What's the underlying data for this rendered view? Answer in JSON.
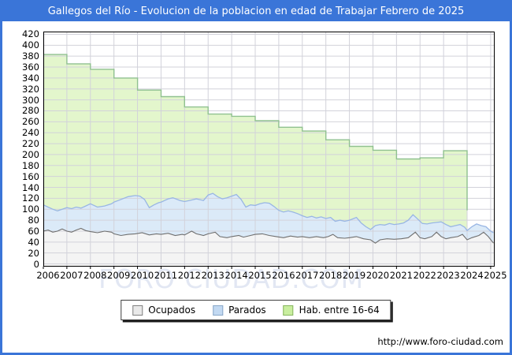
{
  "header": {
    "title": "Gallegos del Río - Evolucion de la poblacion en edad de Trabajar Febrero de 2025"
  },
  "watermark": "FORO CIUDAD.COM",
  "footer": {
    "url": "http://www.foro-ciudad.com"
  },
  "colors": {
    "accent_blue": "#3a75d8",
    "grid": "#d2d2da",
    "plot_border": "#000000",
    "watermark": "#e2e7f3"
  },
  "legend": {
    "items": [
      {
        "label": "Ocupados",
        "swatch_fill": "#e9e9e9",
        "swatch_border": "#7f7f7f"
      },
      {
        "label": "Parados",
        "swatch_fill": "#c2d9f2",
        "swatch_border": "#89a7c8"
      },
      {
        "label": "Hab. entre 16-64",
        "swatch_fill": "#c9ee9f",
        "swatch_border": "#86b55e"
      }
    ]
  },
  "chart_data": {
    "type": "area",
    "title": "Gallegos del Río - Evolucion de la poblacion en edad de Trabajar Febrero de 2025",
    "xlabel": "",
    "ylabel": "",
    "x_axis": {
      "years": [
        2006,
        2007,
        2008,
        2009,
        2010,
        2011,
        2012,
        2013,
        2014,
        2015,
        2016,
        2017,
        2018,
        2019,
        2020,
        2021,
        2022,
        2023,
        2024,
        2025
      ],
      "x_start": 2006,
      "x_end": 2025.17
    },
    "y_axis": {
      "min": 0,
      "max": 420,
      "step": 20
    },
    "grid": true,
    "legend_position": "bottom",
    "series": [
      {
        "name": "Hab. entre 16-64",
        "style": "step-area",
        "fill": "#e3f6cc",
        "stroke": "#90c190",
        "note": "annual values, series ends after the Jan 2024 drop",
        "points": [
          [
            2006,
            383
          ],
          [
            2007,
            366
          ],
          [
            2008,
            356
          ],
          [
            2009,
            340
          ],
          [
            2010,
            318
          ],
          [
            2011,
            306
          ],
          [
            2012,
            287
          ],
          [
            2013,
            274
          ],
          [
            2014,
            270
          ],
          [
            2015,
            262
          ],
          [
            2016,
            250
          ],
          [
            2017,
            243
          ],
          [
            2018,
            227
          ],
          [
            2019,
            215
          ],
          [
            2020,
            208
          ],
          [
            2021,
            192
          ],
          [
            2022,
            194
          ],
          [
            2023,
            207
          ],
          [
            2024,
            98
          ]
        ]
      },
      {
        "name": "Parados",
        "style": "area",
        "fill": "#dbeaf8",
        "stroke": "#99b6e4",
        "note": "stacked on top of Ocupados: line = Ocupados + Parados (activos)",
        "points": [
          [
            2006.0,
            108
          ],
          [
            2006.2,
            104
          ],
          [
            2006.4,
            100
          ],
          [
            2006.6,
            97
          ],
          [
            2006.8,
            100
          ],
          [
            2007.0,
            103
          ],
          [
            2007.2,
            101
          ],
          [
            2007.4,
            104
          ],
          [
            2007.6,
            102
          ],
          [
            2007.8,
            106
          ],
          [
            2008.0,
            110
          ],
          [
            2008.3,
            104
          ],
          [
            2008.6,
            106
          ],
          [
            2008.9,
            110
          ],
          [
            2009.0,
            113
          ],
          [
            2009.3,
            118
          ],
          [
            2009.6,
            123
          ],
          [
            2009.9,
            125
          ],
          [
            2010.1,
            124
          ],
          [
            2010.3,
            118
          ],
          [
            2010.5,
            103
          ],
          [
            2010.7,
            108
          ],
          [
            2010.9,
            112
          ],
          [
            2011.0,
            113
          ],
          [
            2011.3,
            119
          ],
          [
            2011.5,
            121
          ],
          [
            2011.8,
            116
          ],
          [
            2012.0,
            114
          ],
          [
            2012.3,
            117
          ],
          [
            2012.5,
            119
          ],
          [
            2012.8,
            116
          ],
          [
            2013.0,
            126
          ],
          [
            2013.2,
            129
          ],
          [
            2013.4,
            123
          ],
          [
            2013.6,
            119
          ],
          [
            2013.8,
            121
          ],
          [
            2014.0,
            124
          ],
          [
            2014.2,
            127
          ],
          [
            2014.4,
            118
          ],
          [
            2014.6,
            104
          ],
          [
            2014.8,
            108
          ],
          [
            2015.0,
            107
          ],
          [
            2015.2,
            110
          ],
          [
            2015.4,
            112
          ],
          [
            2015.6,
            111
          ],
          [
            2015.8,
            105
          ],
          [
            2016.0,
            98
          ],
          [
            2016.2,
            95
          ],
          [
            2016.4,
            97
          ],
          [
            2016.6,
            95
          ],
          [
            2016.8,
            92
          ],
          [
            2017.0,
            88
          ],
          [
            2017.2,
            85
          ],
          [
            2017.4,
            87
          ],
          [
            2017.6,
            84
          ],
          [
            2017.8,
            86
          ],
          [
            2018.0,
            83
          ],
          [
            2018.2,
            85
          ],
          [
            2018.4,
            78
          ],
          [
            2018.6,
            80
          ],
          [
            2018.8,
            78
          ],
          [
            2019.0,
            80
          ],
          [
            2019.3,
            85
          ],
          [
            2019.5,
            75
          ],
          [
            2019.7,
            68
          ],
          [
            2019.9,
            63
          ],
          [
            2020.1,
            70
          ],
          [
            2020.3,
            72
          ],
          [
            2020.5,
            71
          ],
          [
            2020.7,
            74
          ],
          [
            2020.9,
            72
          ],
          [
            2021.1,
            73
          ],
          [
            2021.3,
            75
          ],
          [
            2021.5,
            80
          ],
          [
            2021.7,
            90
          ],
          [
            2021.9,
            82
          ],
          [
            2022.1,
            74
          ],
          [
            2022.3,
            73
          ],
          [
            2022.5,
            75
          ],
          [
            2022.7,
            76
          ],
          [
            2022.9,
            77
          ],
          [
            2023.1,
            72
          ],
          [
            2023.3,
            68
          ],
          [
            2023.5,
            70
          ],
          [
            2023.7,
            72
          ],
          [
            2023.9,
            67
          ],
          [
            2024.0,
            61
          ],
          [
            2024.2,
            68
          ],
          [
            2024.4,
            73
          ],
          [
            2024.6,
            70
          ],
          [
            2024.8,
            68
          ],
          [
            2025.0,
            60
          ],
          [
            2025.12,
            57
          ]
        ]
      },
      {
        "name": "Ocupados",
        "style": "area",
        "fill": "#f4f4f4",
        "stroke": "#6f6f6f",
        "points": [
          [
            2006.0,
            60
          ],
          [
            2006.2,
            62
          ],
          [
            2006.4,
            58
          ],
          [
            2006.6,
            60
          ],
          [
            2006.8,
            64
          ],
          [
            2007.0,
            60
          ],
          [
            2007.2,
            58
          ],
          [
            2007.4,
            62
          ],
          [
            2007.6,
            65
          ],
          [
            2007.8,
            61
          ],
          [
            2008.0,
            59
          ],
          [
            2008.3,
            57
          ],
          [
            2008.6,
            60
          ],
          [
            2008.9,
            58
          ],
          [
            2009.0,
            55
          ],
          [
            2009.3,
            52
          ],
          [
            2009.6,
            54
          ],
          [
            2009.9,
            55
          ],
          [
            2010.2,
            57
          ],
          [
            2010.5,
            53
          ],
          [
            2010.8,
            55
          ],
          [
            2011.0,
            54
          ],
          [
            2011.3,
            56
          ],
          [
            2011.6,
            52
          ],
          [
            2011.9,
            54
          ],
          [
            2012.0,
            53
          ],
          [
            2012.3,
            60
          ],
          [
            2012.5,
            55
          ],
          [
            2012.8,
            52
          ],
          [
            2013.0,
            55
          ],
          [
            2013.3,
            58
          ],
          [
            2013.5,
            50
          ],
          [
            2013.8,
            48
          ],
          [
            2014.0,
            50
          ],
          [
            2014.3,
            52
          ],
          [
            2014.5,
            49
          ],
          [
            2014.8,
            52
          ],
          [
            2015.0,
            54
          ],
          [
            2015.3,
            55
          ],
          [
            2015.6,
            52
          ],
          [
            2015.9,
            50
          ],
          [
            2016.2,
            48
          ],
          [
            2016.5,
            51
          ],
          [
            2016.8,
            49
          ],
          [
            2017.0,
            50
          ],
          [
            2017.3,
            48
          ],
          [
            2017.6,
            50
          ],
          [
            2017.9,
            48
          ],
          [
            2018.1,
            50
          ],
          [
            2018.3,
            54
          ],
          [
            2018.5,
            48
          ],
          [
            2018.8,
            47
          ],
          [
            2019.0,
            48
          ],
          [
            2019.3,
            50
          ],
          [
            2019.6,
            46
          ],
          [
            2019.9,
            44
          ],
          [
            2020.1,
            38
          ],
          [
            2020.3,
            44
          ],
          [
            2020.6,
            46
          ],
          [
            2020.9,
            45
          ],
          [
            2021.2,
            46
          ],
          [
            2021.5,
            48
          ],
          [
            2021.8,
            58
          ],
          [
            2022.0,
            48
          ],
          [
            2022.2,
            46
          ],
          [
            2022.5,
            50
          ],
          [
            2022.7,
            58
          ],
          [
            2022.9,
            50
          ],
          [
            2023.1,
            46
          ],
          [
            2023.3,
            48
          ],
          [
            2023.6,
            50
          ],
          [
            2023.8,
            54
          ],
          [
            2024.0,
            44
          ],
          [
            2024.2,
            48
          ],
          [
            2024.5,
            52
          ],
          [
            2024.7,
            58
          ],
          [
            2024.9,
            50
          ],
          [
            2025.12,
            38
          ]
        ]
      }
    ]
  }
}
